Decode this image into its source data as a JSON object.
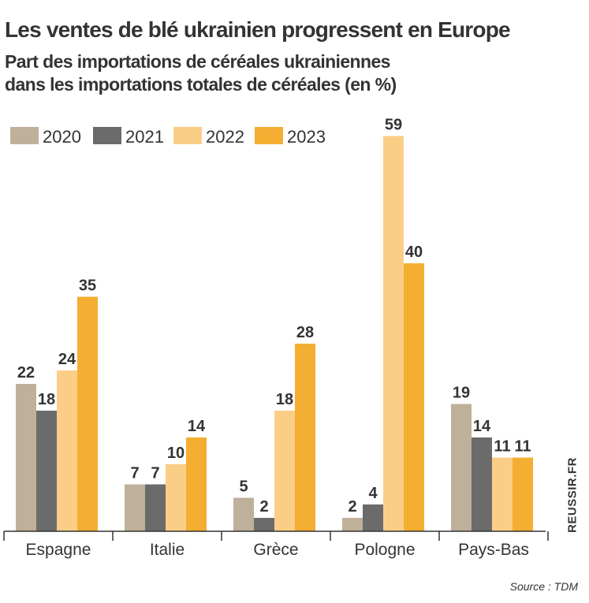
{
  "chart_data": {
    "type": "bar",
    "title": "Les ventes de blé ukrainien progressent en Europe",
    "subtitle_lines": [
      "Part des importations de céréales ukrainiennes",
      "dans les importations totales de céréales (en %)"
    ],
    "xlabel": "",
    "ylabel": "",
    "ylim": [
      0,
      59
    ],
    "grid": false,
    "legend_position": "top-left",
    "categories": [
      "Espagne",
      "Italie",
      "Grèce",
      "Pologne",
      "Pays-Bas"
    ],
    "series": [
      {
        "name": "2020",
        "color": "#bfb09a",
        "values": [
          22,
          7,
          5,
          2,
          19
        ]
      },
      {
        "name": "2021",
        "color": "#6b6b6b",
        "values": [
          18,
          7,
          2,
          4,
          14
        ]
      },
      {
        "name": "2022",
        "color": "#fbce88",
        "values": [
          24,
          10,
          18,
          59,
          11
        ]
      },
      {
        "name": "2023",
        "color": "#f4ae31",
        "values": [
          35,
          14,
          28,
          40,
          11
        ]
      }
    ]
  },
  "watermark": "REUSSIR.FR",
  "source": "Source : TDM",
  "colors": {
    "text": "#333333",
    "axis": "#333333"
  }
}
